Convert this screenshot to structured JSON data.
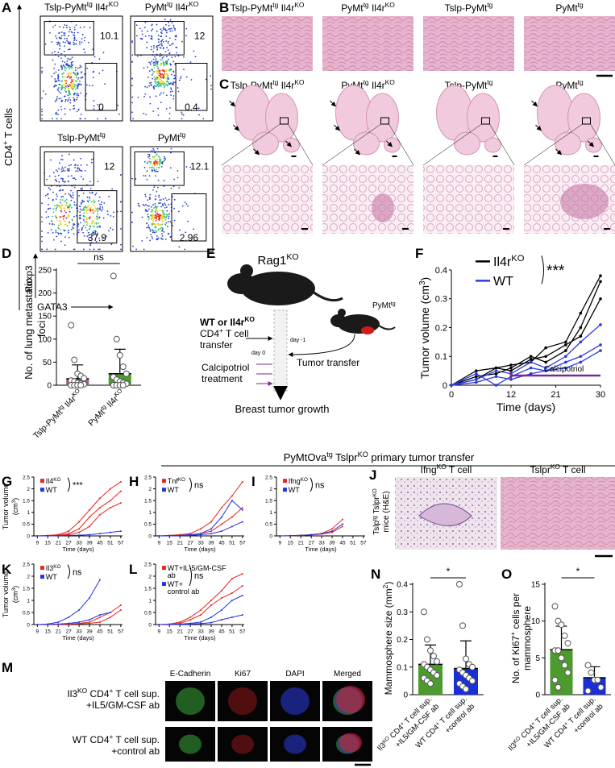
{
  "A": {
    "letter": "A",
    "titles": [
      [
        "Tslp-PyMt",
        "tg",
        " Il4r",
        "KO"
      ],
      [
        "PyMt",
        "tg",
        " Il4r",
        "KO"
      ],
      [
        "Tslp-PyMt",
        "tg"
      ],
      [
        "PyMt",
        "tg"
      ]
    ],
    "cd4": [
      "CD4",
      "+",
      " T cells"
    ],
    "yaxis": "Foxp3",
    "xaxis": "GATA3",
    "gates": [
      [
        10.1,
        0
      ],
      [
        12,
        0.4
      ],
      [
        12,
        37.9
      ],
      [
        12.1,
        2.96
      ]
    ]
  },
  "B": {
    "letter": "B",
    "titles": [
      [
        "Tslp-PyMt",
        "tg",
        " Il4r",
        "KO"
      ],
      [
        "PyMt",
        "tg",
        " Il4r",
        "KO"
      ],
      [
        "Tslp-PyMt",
        "tg"
      ],
      [
        "PyMt",
        "tg"
      ]
    ]
  },
  "C": {
    "letter": "C",
    "titles": [
      [
        "Tslp-PyMt",
        "tg",
        " Il4r",
        "KO"
      ],
      [
        "PyMt",
        "tg",
        " Il4r",
        "KO"
      ],
      [
        "Tslp-PyMt",
        "tg"
      ],
      [
        "PyMt",
        "tg"
      ]
    ]
  },
  "D": {
    "letter": "D",
    "ylabel": [
      "No. of lung metastatic",
      "foci"
    ],
    "stat": "ns",
    "categories": [
      [
        "Tslp-PyMt",
        "tg",
        " Il4r",
        "KO"
      ],
      [
        "PyMt",
        "tg",
        " Il4r",
        "KO"
      ]
    ],
    "values": [
      14,
      25
    ],
    "errors": [
      30,
      53
    ],
    "colors": [
      "#a05a8c",
      "#4d9a2e"
    ],
    "points": [
      [
        130,
        55,
        25,
        20,
        15,
        10,
        8,
        5,
        3,
        2,
        0,
        0,
        0,
        0
      ],
      [
        237,
        100,
        65,
        40,
        25,
        18,
        12,
        8,
        5,
        3,
        0,
        0,
        0,
        0
      ]
    ],
    "ylim": [
      0,
      250
    ],
    "yticks": [
      0,
      50,
      100,
      150,
      200,
      250
    ]
  },
  "E": {
    "letter": "E",
    "host": [
      "Rag1",
      "KO"
    ],
    "donor": [
      "PyMt",
      "tg"
    ],
    "cells1": [
      "WT or Il4r",
      "KO"
    ],
    "cells2": [
      "CD4",
      "+",
      " T cell"
    ],
    "cells3": "transfer",
    "day_minus": "day -1",
    "day_zero": "day 0",
    "tumor": "Tumor transfer",
    "calci1": "Calcipotriol",
    "calci2": "treatment",
    "outcome": "Breast tumor growth"
  },
  "F": {
    "letter": "F",
    "legend": [
      {
        "label": [
          "Il4r",
          "KO"
        ],
        "color": "#000000"
      },
      {
        "label": [
          "WT"
        ],
        "color": "#2a3be0"
      }
    ],
    "stat": "***",
    "treatment": "Calcipotriol",
    "treatment_range": [
      12,
      30
    ],
    "x": [
      0,
      5,
      9,
      12,
      16,
      19,
      23,
      26,
      30
    ],
    "series": [
      {
        "color": "#000000",
        "values": [
          0,
          0.05,
          0.06,
          0.07,
          0.08,
          0.13,
          0.15,
          0.25,
          0.38
        ]
      },
      {
        "color": "#000000",
        "values": [
          0,
          0.03,
          0.04,
          0.06,
          0.1,
          0.08,
          0.12,
          0.2,
          0.36
        ]
      },
      {
        "color": "#000000",
        "values": [
          0,
          0.02,
          0.06,
          0.05,
          0.09,
          0.1,
          0.14,
          0.17,
          0.3
        ]
      },
      {
        "color": "#2a3be0",
        "values": [
          0,
          0.02,
          0.05,
          0.04,
          0.08,
          0.06,
          0.1,
          0.15,
          0.21
        ]
      },
      {
        "color": "#2a3be0",
        "values": [
          0,
          0.01,
          0.03,
          0.02,
          0.04,
          0.05,
          0.06,
          0.08,
          0.12
        ]
      },
      {
        "color": "#2a3be0",
        "values": [
          0,
          0.04,
          0.0,
          0.03,
          0.06,
          0.05,
          0.08,
          0.1,
          0.14
        ]
      }
    ],
    "xlim": [
      0,
      30
    ],
    "xticks": [
      0,
      12,
      21,
      30
    ],
    "ylim": [
      0,
      0.4
    ],
    "yticks": [
      0,
      0.1,
      0.2,
      0.3,
      0.4
    ],
    "xlabel": "Time (days)",
    "ylabel": [
      "Tumor volume (cm",
      "3",
      ")"
    ]
  },
  "section_title": [
    "PyMtOva",
    "tg",
    " Tslpr",
    "KO",
    " primary tumor transfer"
  ],
  "G": {
    "letter": "G",
    "legend": [
      {
        "label": [
          "Il4",
          "KO"
        ],
        "color": "#e8251f"
      },
      {
        "label": [
          "WT"
        ],
        "color": "#2633e0"
      }
    ],
    "stat": "***",
    "x": [
      9,
      15,
      21,
      27,
      33,
      39,
      45,
      51,
      57
    ],
    "series": [
      {
        "color": "#e8251f",
        "values": [
          0,
          0.02,
          0.05,
          0.2,
          0.6,
          1.1,
          1.6,
          2.0,
          2.3
        ]
      },
      {
        "color": "#e8251f",
        "values": [
          0,
          0.01,
          0.03,
          0.1,
          0.3,
          0.8,
          1.2,
          1.5,
          1.9
        ]
      },
      {
        "color": "#e8251f",
        "values": [
          0,
          0,
          0.02,
          0.05,
          0.15,
          0.4,
          0.9,
          1.2,
          1.4
        ]
      },
      {
        "color": "#2633e0",
        "values": [
          0,
          0,
          0.01,
          0.02,
          0.03,
          0.05,
          0.1,
          0.15,
          0.2
        ]
      }
    ],
    "xlim": [
      7,
      58
    ],
    "xticks": [
      9,
      15,
      21,
      27,
      33,
      39,
      45,
      51,
      57
    ],
    "ylim": [
      0,
      2.5
    ],
    "yticks": [
      0,
      0.5,
      1,
      1.5,
      2,
      2.5
    ],
    "xlabel": "Time (days)",
    "ylabel": "Tumor volume",
    "yunit": [
      "(cm",
      "3",
      ")"
    ]
  },
  "H": {
    "letter": "H",
    "legend": [
      {
        "label": [
          "Tnf",
          "KO"
        ],
        "color": "#e8251f"
      },
      {
        "label": [
          "WT"
        ],
        "color": "#2633e0"
      }
    ],
    "stat": "ns",
    "x": [
      9,
      15,
      21,
      27,
      33,
      39,
      45,
      51,
      57
    ],
    "series": [
      {
        "color": "#e8251f",
        "values": [
          0,
          0.02,
          0.05,
          0.1,
          0.3,
          0.6,
          1.2,
          1.7,
          2.3
        ]
      },
      {
        "color": "#e8251f",
        "values": [
          0,
          0.01,
          0.02,
          0.05,
          0.1,
          0.2,
          0.5,
          0.8,
          1.2
        ]
      },
      {
        "color": "#2633e0",
        "values": [
          0,
          0.01,
          0.02,
          0.05,
          0.1,
          0.3,
          0.8,
          1.5,
          1.1
        ]
      },
      {
        "color": "#2633e0",
        "values": [
          0,
          0,
          0.01,
          0.02,
          0.05,
          0.1,
          0.2,
          0.4,
          0.6
        ]
      }
    ],
    "xlim": [
      7,
      58
    ],
    "xticks": [
      9,
      15,
      21,
      27,
      33,
      39,
      45,
      51,
      57
    ],
    "ylim": [
      0,
      2.5
    ],
    "yticks": [
      0,
      0.5,
      1,
      1.5,
      2,
      2.5
    ],
    "xlabel": "Time (days)"
  },
  "I": {
    "letter": "I",
    "legend": [
      {
        "label": [
          "Ifng",
          "KO"
        ],
        "color": "#e8251f"
      },
      {
        "label": [
          "WT"
        ],
        "color": "#2633e0"
      }
    ],
    "stat": "ns",
    "x": [
      9,
      15,
      21,
      27,
      33,
      39,
      45,
      51,
      57
    ],
    "series": [
      {
        "color": "#e8251f",
        "values": [
          0,
          0.01,
          0.03,
          0.05,
          0.1,
          0.3,
          0.7,
          null,
          null
        ]
      },
      {
        "color": "#e8251f",
        "values": [
          0,
          0,
          0.02,
          0.04,
          0.08,
          0.15,
          0.4,
          null,
          null
        ]
      },
      {
        "color": "#2633e0",
        "values": [
          0,
          0.01,
          0.02,
          0.05,
          0.1,
          0.2,
          0.5,
          null,
          null
        ]
      }
    ],
    "xlim": [
      7,
      58
    ],
    "xticks": [
      9,
      15,
      21,
      27,
      33,
      39,
      45,
      51,
      57
    ],
    "ylim": [
      0,
      2.5
    ],
    "yticks": [
      0,
      0.5,
      1,
      1.5,
      2,
      2.5
    ],
    "xlabel": "Time (days)"
  },
  "J": {
    "letter": "J",
    "titles": [
      [
        "Ifng",
        "KO",
        " T cell"
      ],
      [
        "Tslpr",
        "KO",
        " T cell"
      ]
    ],
    "ylabel1": [
      "Tslp",
      "tg",
      " Tslpr",
      "KO"
    ],
    "ylabel2": "mice (H&E)"
  },
  "K": {
    "letter": "K",
    "legend": [
      {
        "label": [
          "Il3",
          "KO"
        ],
        "color": "#e8251f"
      },
      {
        "label": [
          "WT"
        ],
        "color": "#2633e0"
      }
    ],
    "stat": "ns",
    "x": [
      9,
      15,
      21,
      27,
      33,
      39,
      45,
      51,
      57
    ],
    "series": [
      {
        "color": "#e8251f",
        "values": [
          0,
          0,
          0.01,
          0.02,
          0.05,
          0.1,
          0.3,
          0.5,
          0.8
        ]
      },
      {
        "color": "#e8251f",
        "values": [
          0,
          0,
          0.01,
          0.02,
          0.03,
          0.05,
          0.1,
          0.3,
          0.6
        ]
      },
      {
        "color": "#2633e0",
        "values": [
          0,
          0.02,
          0.1,
          0.3,
          0.6,
          1.1,
          1.85,
          null,
          null
        ]
      },
      {
        "color": "#2633e0",
        "values": [
          0,
          0.01,
          0.02,
          0.05,
          0.1,
          0.2,
          0.4,
          0.5,
          null
        ]
      }
    ],
    "xlim": [
      7,
      58
    ],
    "xticks": [
      9,
      15,
      21,
      27,
      33,
      39,
      45,
      51,
      57
    ],
    "ylim": [
      0,
      2.5
    ],
    "yticks": [
      0,
      0.5,
      1,
      1.5,
      2,
      2.5
    ],
    "xlabel": "Time (days)",
    "ylabel": "Tumor volume",
    "yunit": [
      "(cm",
      "3",
      ")"
    ]
  },
  "Lp": {
    "letter": "L",
    "legend": [
      {
        "label": [
          "WT+IL-5/GM-CSF"
        ],
        "line2": "ab",
        "color": "#e8251f"
      },
      {
        "label": [
          "WT+"
        ],
        "line2": "control ab",
        "color": "#2633e0"
      }
    ],
    "stat": "ns",
    "x": [
      9,
      15,
      21,
      27,
      33,
      39,
      45,
      51,
      57
    ],
    "series": [
      {
        "color": "#e8251f",
        "values": [
          0,
          0.02,
          0.1,
          0.3,
          0.6,
          1.0,
          1.4,
          1.9,
          2.1
        ]
      },
      {
        "color": "#e8251f",
        "values": [
          0,
          0.01,
          0.05,
          0.2,
          0.4,
          0.8,
          1.1,
          1.3,
          1.6
        ]
      },
      {
        "color": "#2633e0",
        "values": [
          0,
          0.01,
          0.02,
          0.05,
          0.1,
          0.3,
          0.6,
          1.0,
          1.2
        ]
      },
      {
        "color": "#2633e0",
        "values": [
          0,
          0,
          0.01,
          0.02,
          0.04,
          0.08,
          0.2,
          0.3,
          0.4
        ]
      }
    ],
    "xlim": [
      7,
      58
    ],
    "xticks": [
      9,
      15,
      21,
      27,
      33,
      39,
      45,
      51,
      57
    ],
    "ylim": [
      0,
      2.5
    ],
    "yticks": [
      0,
      0.5,
      1,
      1.5,
      2,
      2.5
    ],
    "xlabel": "Time (days)"
  },
  "M": {
    "letter": "M",
    "channels": [
      {
        "name": "E-Cadherin",
        "color": "#3aa83a"
      },
      {
        "name": "Ki67",
        "color": "#e02020"
      },
      {
        "name": "DAPI",
        "color": "#2a3be0"
      },
      {
        "name": "Merged",
        "color": "#000000"
      }
    ],
    "rows": [
      {
        "line1": [
          "Il3",
          "KO",
          " CD4",
          "+",
          " T cell sup."
        ],
        "line2": "+IL5/GM-CSF ab"
      },
      {
        "line1": [
          "WT CD4",
          "+",
          " T cell sup."
        ],
        "line2": "+control ab"
      }
    ]
  },
  "N": {
    "letter": "N",
    "ylabel": [
      "Mammosphere size (mm",
      "2",
      ")"
    ],
    "stat": "*",
    "categories": [
      {
        "line1": [
          "Il3",
          "KO",
          " CD4",
          "+",
          " T cell sup."
        ],
        "line2": "+IL5/GM-CSF ab"
      },
      {
        "line1": [
          "WT CD4",
          "+",
          " T cell sup."
        ],
        "line2": "+control ab"
      }
    ],
    "values": [
      0.11,
      0.095
    ],
    "errors": [
      0.07,
      0.1
    ],
    "colors": [
      "#4d9a2e",
      "#1a2fd8"
    ],
    "points": [
      [
        0.3,
        0.2,
        0.16,
        0.14,
        0.12,
        0.11,
        0.1,
        0.09,
        0.08,
        0.07,
        0.06,
        0.05,
        0.04
      ],
      [
        0.4,
        0.25,
        0.13,
        0.11,
        0.1,
        0.09,
        0.08,
        0.07,
        0.06,
        0.05,
        0.04,
        0.03,
        0.02
      ]
    ],
    "ylim": [
      0,
      0.4
    ],
    "yticks": [
      0,
      0.1,
      0.2,
      0.3,
      0.4
    ]
  },
  "O": {
    "letter": "O",
    "ylabel": [
      "No. of Ki67",
      "+",
      " cells per"
    ],
    "ylabel2": "mammosphere",
    "stat": "*",
    "categories": [
      {
        "line1": [
          "Il3",
          "KO",
          " CD4",
          "+",
          " T cell sup."
        ],
        "line2": "+IL5/GM-CSF ab"
      },
      {
        "line1": [
          "WT CD4",
          "+",
          " T cell sup."
        ],
        "line2": "+control ab"
      }
    ],
    "values": [
      6.1,
      2.3
    ],
    "errors": [
      3.2,
      1.5
    ],
    "colors": [
      "#4d9a2e",
      "#1a2fd8"
    ],
    "points": [
      [
        12,
        10,
        9.5,
        8,
        7,
        6,
        6,
        5,
        4,
        3,
        2,
        1
      ],
      [
        4,
        3,
        2,
        2,
        1,
        0.5
      ]
    ],
    "ylim": [
      0,
      15
    ],
    "yticks": [
      0,
      5,
      10,
      15
    ]
  }
}
